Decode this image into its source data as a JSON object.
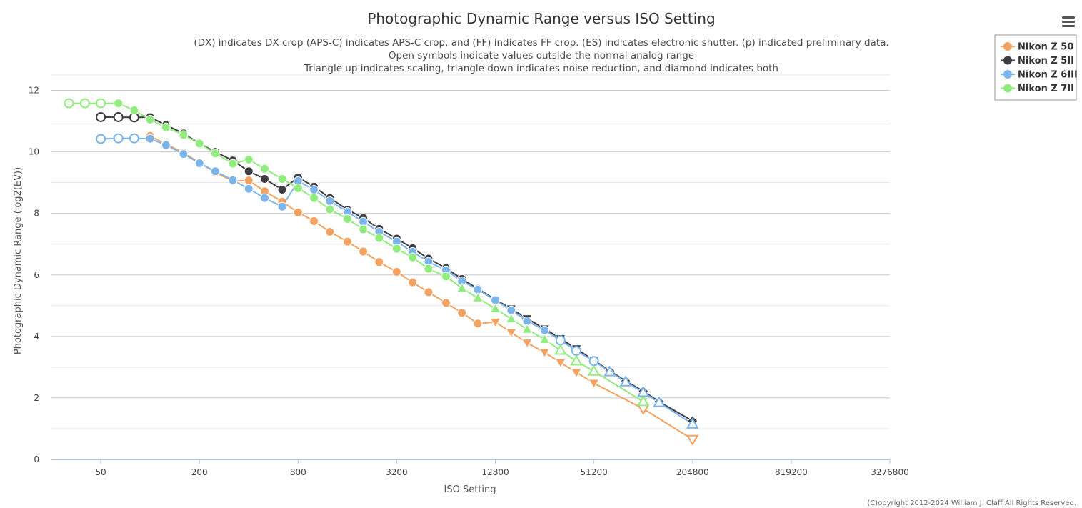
{
  "chart_data": {
    "type": "line",
    "title": "Photographic Dynamic Range versus ISO Setting",
    "subtitle": [
      "(DX) indicates DX crop (APS-C) indicates APS-C crop, and (FF) indicates FF crop. (ES) indicates electronic shutter. (p) indicated preliminary data.",
      "Open symbols indicate values outside the normal analog range",
      "Triangle up indicates scaling, triangle down indicates noise reduction, and diamond indicates both"
    ],
    "xlabel": "ISO Setting",
    "ylabel": "Photographic Dynamic Range (log2(EV))",
    "x_scale": "log2",
    "xlim": [
      25,
      3276800
    ],
    "ylim": [
      0,
      12.5
    ],
    "x_ticks": [
      50,
      200,
      800,
      3200,
      12800,
      51200,
      204800,
      819200,
      3276800
    ],
    "y_ticks": [
      0,
      2,
      4,
      6,
      8,
      10,
      12
    ],
    "grid": true,
    "legend_position": "top-right",
    "series": [
      {
        "name": "Nikon Z 50",
        "color": "#f4a261",
        "points": [
          {
            "x": 100,
            "y": 10.52,
            "m": "circle"
          },
          {
            "x": 125,
            "y": 10.25,
            "m": "circle"
          },
          {
            "x": 160,
            "y": 9.97,
            "m": "circle"
          },
          {
            "x": 200,
            "y": 9.65,
            "m": "circle"
          },
          {
            "x": 250,
            "y": 9.33,
            "m": "circle"
          },
          {
            "x": 320,
            "y": 9.05,
            "m": "circle"
          },
          {
            "x": 400,
            "y": 9.07,
            "m": "circle"
          },
          {
            "x": 500,
            "y": 8.72,
            "m": "circle"
          },
          {
            "x": 640,
            "y": 8.38,
            "m": "circle"
          },
          {
            "x": 800,
            "y": 8.03,
            "m": "circle"
          },
          {
            "x": 1000,
            "y": 7.75,
            "m": "circle"
          },
          {
            "x": 1250,
            "y": 7.4,
            "m": "circle"
          },
          {
            "x": 1600,
            "y": 7.08,
            "m": "circle"
          },
          {
            "x": 2000,
            "y": 6.76,
            "m": "circle"
          },
          {
            "x": 2500,
            "y": 6.42,
            "m": "circle"
          },
          {
            "x": 3200,
            "y": 6.1,
            "m": "circle"
          },
          {
            "x": 4000,
            "y": 5.76,
            "m": "circle"
          },
          {
            "x": 5000,
            "y": 5.44,
            "m": "circle"
          },
          {
            "x": 6400,
            "y": 5.09,
            "m": "circle"
          },
          {
            "x": 8000,
            "y": 4.77,
            "m": "circle"
          },
          {
            "x": 10000,
            "y": 4.42,
            "m": "circle"
          },
          {
            "x": 12800,
            "y": 4.47,
            "m": "tri-down"
          },
          {
            "x": 16000,
            "y": 4.13,
            "m": "tri-down"
          },
          {
            "x": 20000,
            "y": 3.79,
            "m": "tri-down"
          },
          {
            "x": 25600,
            "y": 3.48,
            "m": "tri-down"
          },
          {
            "x": 32000,
            "y": 3.15,
            "m": "tri-down"
          },
          {
            "x": 40000,
            "y": 2.83,
            "m": "tri-down"
          },
          {
            "x": 51200,
            "y": 2.48,
            "m": "tri-down"
          },
          {
            "x": 102400,
            "y": 1.65,
            "m": "tri-down-open"
          },
          {
            "x": 204800,
            "y": 0.65,
            "m": "tri-down-open"
          }
        ]
      },
      {
        "name": "Nikon Z 5II",
        "color": "#3d3d42",
        "points": [
          {
            "x": 50,
            "y": 11.13,
            "m": "circle-open"
          },
          {
            "x": 64,
            "y": 11.13,
            "m": "circle-open"
          },
          {
            "x": 80,
            "y": 11.12,
            "m": "circle-open"
          },
          {
            "x": 100,
            "y": 11.13,
            "m": "circle"
          },
          {
            "x": 125,
            "y": 10.87,
            "m": "circle"
          },
          {
            "x": 160,
            "y": 10.6,
            "m": "circle"
          },
          {
            "x": 200,
            "y": 10.27,
            "m": "circle"
          },
          {
            "x": 250,
            "y": 10.0,
            "m": "circle"
          },
          {
            "x": 320,
            "y": 9.72,
            "m": "circle"
          },
          {
            "x": 400,
            "y": 9.37,
            "m": "circle"
          },
          {
            "x": 500,
            "y": 9.12,
            "m": "circle"
          },
          {
            "x": 640,
            "y": 8.77,
            "m": "circle"
          },
          {
            "x": 800,
            "y": 9.17,
            "m": "circle"
          },
          {
            "x": 1000,
            "y": 8.87,
            "m": "circle"
          },
          {
            "x": 1250,
            "y": 8.5,
            "m": "circle"
          },
          {
            "x": 1600,
            "y": 8.12,
            "m": "circle"
          },
          {
            "x": 2000,
            "y": 7.85,
            "m": "circle"
          },
          {
            "x": 2500,
            "y": 7.5,
            "m": "circle"
          },
          {
            "x": 3200,
            "y": 7.18,
            "m": "circle"
          },
          {
            "x": 4000,
            "y": 6.87,
            "m": "circle"
          },
          {
            "x": 5000,
            "y": 6.53,
            "m": "circle"
          },
          {
            "x": 6400,
            "y": 6.22,
            "m": "circle"
          },
          {
            "x": 8000,
            "y": 5.87,
            "m": "circle"
          },
          {
            "x": 10000,
            "y": 5.55,
            "m": "circle"
          },
          {
            "x": 12800,
            "y": 5.2,
            "m": "circle"
          },
          {
            "x": 16000,
            "y": 4.9,
            "m": "tri-down"
          },
          {
            "x": 20000,
            "y": 4.58,
            "m": "tri-down"
          },
          {
            "x": 25600,
            "y": 4.25,
            "m": "tri-down"
          },
          {
            "x": 32000,
            "y": 3.93,
            "m": "tri-down"
          },
          {
            "x": 40000,
            "y": 3.6,
            "m": "tri-down"
          },
          {
            "x": 51200,
            "y": 3.22,
            "m": "tri-down"
          },
          {
            "x": 64000,
            "y": 2.88,
            "m": "diamond"
          },
          {
            "x": 80000,
            "y": 2.55,
            "m": "diamond"
          },
          {
            "x": 102400,
            "y": 2.22,
            "m": "diamond"
          },
          {
            "x": 128000,
            "y": 1.88,
            "m": "diamond"
          },
          {
            "x": 204800,
            "y": 1.25,
            "m": "diamond"
          }
        ]
      },
      {
        "name": "Nikon Z 6III",
        "color": "#7cb5ec",
        "points": [
          {
            "x": 50,
            "y": 10.42,
            "m": "circle-open"
          },
          {
            "x": 64,
            "y": 10.44,
            "m": "circle-open"
          },
          {
            "x": 80,
            "y": 10.44,
            "m": "circle-open"
          },
          {
            "x": 100,
            "y": 10.43,
            "m": "circle"
          },
          {
            "x": 125,
            "y": 10.22,
            "m": "circle"
          },
          {
            "x": 160,
            "y": 9.93,
            "m": "circle"
          },
          {
            "x": 200,
            "y": 9.63,
            "m": "circle"
          },
          {
            "x": 250,
            "y": 9.37,
            "m": "circle"
          },
          {
            "x": 320,
            "y": 9.08,
            "m": "circle"
          },
          {
            "x": 400,
            "y": 8.8,
            "m": "circle"
          },
          {
            "x": 500,
            "y": 8.5,
            "m": "circle"
          },
          {
            "x": 640,
            "y": 8.22,
            "m": "circle"
          },
          {
            "x": 800,
            "y": 9.05,
            "m": "circle"
          },
          {
            "x": 1000,
            "y": 8.77,
            "m": "circle"
          },
          {
            "x": 1250,
            "y": 8.4,
            "m": "circle"
          },
          {
            "x": 1600,
            "y": 8.05,
            "m": "circle"
          },
          {
            "x": 2000,
            "y": 7.73,
            "m": "circle"
          },
          {
            "x": 2500,
            "y": 7.4,
            "m": "circle"
          },
          {
            "x": 3200,
            "y": 7.08,
            "m": "circle"
          },
          {
            "x": 4000,
            "y": 6.75,
            "m": "circle"
          },
          {
            "x": 5000,
            "y": 6.43,
            "m": "circle"
          },
          {
            "x": 6400,
            "y": 6.15,
            "m": "circle"
          },
          {
            "x": 8000,
            "y": 5.8,
            "m": "circle"
          },
          {
            "x": 10000,
            "y": 5.52,
            "m": "circle"
          },
          {
            "x": 12800,
            "y": 5.18,
            "m": "circle"
          },
          {
            "x": 16000,
            "y": 4.85,
            "m": "circle"
          },
          {
            "x": 20000,
            "y": 4.5,
            "m": "circle"
          },
          {
            "x": 25600,
            "y": 4.2,
            "m": "circle"
          },
          {
            "x": 32000,
            "y": 3.87,
            "m": "circle-open"
          },
          {
            "x": 40000,
            "y": 3.53,
            "m": "circle-open"
          },
          {
            "x": 51200,
            "y": 3.2,
            "m": "circle-open"
          },
          {
            "x": 64000,
            "y": 2.85,
            "m": "tri-up-open"
          },
          {
            "x": 80000,
            "y": 2.52,
            "m": "tri-up-open"
          },
          {
            "x": 102400,
            "y": 2.18,
            "m": "tri-up-open"
          },
          {
            "x": 128000,
            "y": 1.85,
            "m": "tri-up-open"
          },
          {
            "x": 204800,
            "y": 1.15,
            "m": "tri-up-open"
          }
        ]
      },
      {
        "name": "Nikon Z 7II",
        "color": "#90ed7d",
        "points": [
          {
            "x": 32,
            "y": 11.58,
            "m": "circle-open"
          },
          {
            "x": 40,
            "y": 11.58,
            "m": "circle-open"
          },
          {
            "x": 50,
            "y": 11.58,
            "m": "circle-open"
          },
          {
            "x": 64,
            "y": 11.58,
            "m": "circle"
          },
          {
            "x": 80,
            "y": 11.35,
            "m": "circle"
          },
          {
            "x": 100,
            "y": 11.05,
            "m": "circle"
          },
          {
            "x": 125,
            "y": 10.8,
            "m": "circle"
          },
          {
            "x": 160,
            "y": 10.55,
            "m": "circle"
          },
          {
            "x": 200,
            "y": 10.27,
            "m": "circle"
          },
          {
            "x": 250,
            "y": 9.95,
            "m": "circle"
          },
          {
            "x": 320,
            "y": 9.62,
            "m": "circle"
          },
          {
            "x": 400,
            "y": 9.75,
            "m": "circle"
          },
          {
            "x": 500,
            "y": 9.45,
            "m": "circle"
          },
          {
            "x": 640,
            "y": 9.12,
            "m": "circle"
          },
          {
            "x": 800,
            "y": 8.82,
            "m": "circle"
          },
          {
            "x": 1000,
            "y": 8.5,
            "m": "circle"
          },
          {
            "x": 1250,
            "y": 8.13,
            "m": "circle"
          },
          {
            "x": 1600,
            "y": 7.82,
            "m": "circle"
          },
          {
            "x": 2000,
            "y": 7.48,
            "m": "circle"
          },
          {
            "x": 2500,
            "y": 7.2,
            "m": "circle"
          },
          {
            "x": 3200,
            "y": 6.85,
            "m": "circle"
          },
          {
            "x": 4000,
            "y": 6.57,
            "m": "circle"
          },
          {
            "x": 5000,
            "y": 6.2,
            "m": "circle"
          },
          {
            "x": 6400,
            "y": 5.95,
            "m": "circle"
          },
          {
            "x": 8000,
            "y": 5.57,
            "m": "tri-up"
          },
          {
            "x": 10000,
            "y": 5.25,
            "m": "tri-up"
          },
          {
            "x": 12800,
            "y": 4.9,
            "m": "tri-up"
          },
          {
            "x": 16000,
            "y": 4.57,
            "m": "tri-up"
          },
          {
            "x": 20000,
            "y": 4.23,
            "m": "tri-up"
          },
          {
            "x": 25600,
            "y": 3.9,
            "m": "tri-up"
          },
          {
            "x": 32000,
            "y": 3.55,
            "m": "tri-up-open"
          },
          {
            "x": 40000,
            "y": 3.2,
            "m": "tri-up-open"
          },
          {
            "x": 51200,
            "y": 2.87,
            "m": "tri-up-open"
          },
          {
            "x": 102400,
            "y": 1.88,
            "m": "tri-up-open"
          }
        ]
      }
    ]
  },
  "copyright": "(C)opyright 2012-2024 William J. Claff All Rights Reserved.",
  "menu_icon": "hamburger-menu-icon"
}
